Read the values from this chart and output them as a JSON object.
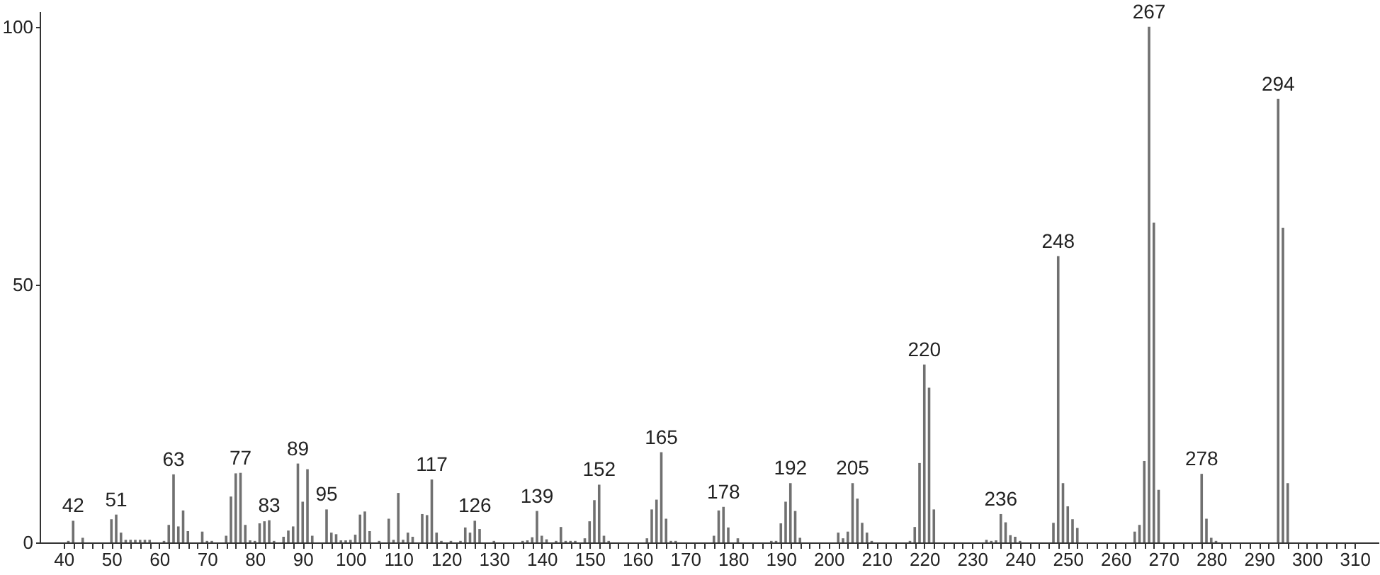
{
  "chart_data": {
    "type": "bar",
    "x": [
      41,
      42,
      44,
      50,
      51,
      52,
      53,
      54,
      55,
      56,
      57,
      58,
      61,
      62,
      63,
      64,
      65,
      66,
      69,
      70,
      71,
      74,
      75,
      76,
      77,
      78,
      79,
      80,
      81,
      82,
      83,
      84,
      86,
      87,
      88,
      89,
      90,
      91,
      92,
      95,
      96,
      97,
      98,
      99,
      100,
      101,
      102,
      103,
      104,
      106,
      108,
      109,
      110,
      111,
      112,
      113,
      115,
      116,
      117,
      118,
      119,
      121,
      123,
      124,
      125,
      126,
      127,
      130,
      136,
      137,
      138,
      139,
      140,
      141,
      143,
      144,
      145,
      146,
      147,
      149,
      150,
      151,
      152,
      153,
      154,
      162,
      163,
      164,
      165,
      166,
      167,
      168,
      176,
      177,
      178,
      179,
      181,
      188,
      189,
      190,
      191,
      192,
      193,
      194,
      202,
      203,
      204,
      205,
      206,
      207,
      208,
      209,
      217,
      218,
      219,
      220,
      221,
      222,
      233,
      234,
      235,
      236,
      237,
      238,
      239,
      240,
      247,
      248,
      249,
      250,
      251,
      252,
      264,
      265,
      266,
      267,
      268,
      269,
      278,
      279,
      280,
      281,
      294,
      295,
      296
    ],
    "values": [
      0.3,
      4.2,
      0.9,
      4.5,
      5.4,
      1.9,
      0.5,
      0.5,
      0.5,
      0.5,
      0.5,
      0.5,
      0.3,
      3.4,
      13.2,
      3.1,
      6.2,
      2.2,
      2.1,
      0.3,
      0.3,
      1.3,
      8.9,
      13.4,
      13.5,
      3.4,
      0.4,
      0.3,
      3.7,
      4.1,
      4.3,
      0.3,
      1.1,
      2.3,
      3.1,
      15.3,
      7.9,
      14.2,
      1.3,
      6.4,
      1.9,
      1.6,
      0.4,
      0.4,
      0.5,
      1.5,
      5.4,
      6.0,
      2.2,
      0.3,
      4.6,
      0.5,
      9.6,
      0.5,
      1.9,
      1.1,
      5.5,
      5.3,
      12.2,
      1.9,
      0.3,
      0.3,
      0.3,
      2.9,
      1.9,
      4.2,
      2.6,
      0.3,
      0.3,
      0.4,
      1.0,
      6.1,
      1.3,
      0.6,
      0.3,
      3.0,
      0.3,
      0.3,
      0.3,
      0.8,
      4.1,
      8.2,
      11.2,
      1.3,
      0.3,
      0.8,
      6.4,
      8.3,
      17.5,
      4.6,
      0.3,
      0.3,
      1.3,
      6.2,
      6.9,
      2.9,
      0.8,
      0.3,
      0.3,
      3.7,
      7.9,
      11.5,
      6.1,
      0.9,
      1.9,
      0.8,
      2.1,
      11.5,
      8.5,
      3.8,
      1.9,
      0.3,
      0.3,
      3.0,
      15.4,
      34.5,
      30.0,
      6.4,
      0.5,
      0.3,
      0.4,
      5.5,
      3.9,
      1.4,
      1.1,
      0.3,
      3.8,
      55.5,
      11.5,
      7.0,
      4.5,
      2.8,
      2.1,
      3.4,
      15.8,
      100,
      62,
      10.2,
      13.3,
      4.6,
      0.9,
      0.3,
      86,
      61,
      11.5
    ],
    "color": "#707070",
    "xlim": [
      35,
      315
    ],
    "xticks": [
      40,
      {
        "value": 42,
        "label": null
      },
      {
        "value": 44,
        "label": null
      },
      {
        "value": 46,
        "label": null
      },
      {
        "value": 48,
        "label": null
      },
      50,
      {
        "value": 52,
        "label": null
      },
      {
        "value": 54,
        "label": null
      },
      {
        "value": 56,
        "label": null
      },
      {
        "value": 58,
        "label": null
      },
      60,
      {
        "value": 62,
        "label": null
      },
      {
        "value": 64,
        "label": null
      },
      {
        "value": 66,
        "label": null
      },
      {
        "value": 68,
        "label": null
      },
      70,
      {
        "value": 72,
        "label": null
      },
      {
        "value": 74,
        "label": null
      },
      {
        "value": 76,
        "label": null
      },
      {
        "value": 78,
        "label": null
      },
      80,
      {
        "value": 82,
        "label": null
      },
      {
        "value": 84,
        "label": null
      },
      {
        "value": 86,
        "label": null
      },
      {
        "value": 88,
        "label": null
      },
      90,
      {
        "value": 92,
        "label": null
      },
      {
        "value": 94,
        "label": null
      },
      {
        "value": 96,
        "label": null
      },
      {
        "value": 98,
        "label": null
      },
      100,
      {
        "value": 102,
        "label": null
      },
      {
        "value": 104,
        "label": null
      },
      {
        "value": 106,
        "label": null
      },
      {
        "value": 108,
        "label": null
      },
      110,
      {
        "value": 112,
        "label": null
      },
      {
        "value": 114,
        "label": null
      },
      {
        "value": 116,
        "label": null
      },
      {
        "value": 118,
        "label": null
      },
      120,
      {
        "value": 122,
        "label": null
      },
      {
        "value": 124,
        "label": null
      },
      {
        "value": 126,
        "label": null
      },
      {
        "value": 128,
        "label": null
      },
      130,
      {
        "value": 132,
        "label": null
      },
      {
        "value": 134,
        "label": null
      },
      {
        "value": 136,
        "label": null
      },
      {
        "value": 138,
        "label": null
      },
      140,
      {
        "value": 142,
        "label": null
      },
      {
        "value": 144,
        "label": null
      },
      {
        "value": 146,
        "label": null
      },
      {
        "value": 148,
        "label": null
      },
      150,
      {
        "value": 152,
        "label": null
      },
      {
        "value": 154,
        "label": null
      },
      {
        "value": 156,
        "label": null
      },
      {
        "value": 158,
        "label": null
      },
      160,
      {
        "value": 162,
        "label": null
      },
      {
        "value": 164,
        "label": null
      },
      {
        "value": 166,
        "label": null
      },
      {
        "value": 168,
        "label": null
      },
      170,
      {
        "value": 172,
        "label": null
      },
      {
        "value": 174,
        "label": null
      },
      {
        "value": 176,
        "label": null
      },
      {
        "value": 178,
        "label": null
      },
      180,
      {
        "value": 182,
        "label": null
      },
      {
        "value": 184,
        "label": null
      },
      {
        "value": 186,
        "label": null
      },
      {
        "value": 188,
        "label": null
      },
      190,
      {
        "value": 192,
        "label": null
      },
      {
        "value": 194,
        "label": null
      },
      {
        "value": 196,
        "label": null
      },
      {
        "value": 198,
        "label": null
      },
      200,
      {
        "value": 202,
        "label": null
      },
      {
        "value": 204,
        "label": null
      },
      {
        "value": 206,
        "label": null
      },
      {
        "value": 208,
        "label": null
      },
      210,
      {
        "value": 212,
        "label": null
      },
      {
        "value": 214,
        "label": null
      },
      {
        "value": 216,
        "label": null
      },
      {
        "value": 218,
        "label": null
      },
      220,
      {
        "value": 222,
        "label": null
      },
      {
        "value": 224,
        "label": null
      },
      {
        "value": 226,
        "label": null
      },
      {
        "value": 228,
        "label": null
      },
      230,
      {
        "value": 232,
        "label": null
      },
      {
        "value": 234,
        "label": null
      },
      {
        "value": 236,
        "label": null
      },
      {
        "value": 238,
        "label": null
      },
      240,
      {
        "value": 242,
        "label": null
      },
      {
        "value": 244,
        "label": null
      },
      {
        "value": 246,
        "label": null
      },
      {
        "value": 248,
        "label": null
      },
      250,
      {
        "value": 252,
        "label": null
      },
      {
        "value": 254,
        "label": null
      },
      {
        "value": 256,
        "label": null
      },
      {
        "value": 258,
        "label": null
      },
      260,
      {
        "value": 262,
        "label": null
      },
      {
        "value": 264,
        "label": null
      },
      {
        "value": 266,
        "label": null
      },
      {
        "value": 268,
        "label": null
      },
      270,
      {
        "value": 272,
        "label": null
      },
      {
        "value": 274,
        "label": null
      },
      {
        "value": 276,
        "label": null
      },
      {
        "value": 278,
        "label": null
      },
      280,
      {
        "value": 282,
        "label": null
      },
      {
        "value": 284,
        "label": null
      },
      {
        "value": 286,
        "label": null
      },
      {
        "value": 288,
        "label": null
      },
      290,
      {
        "value": 292,
        "label": null
      },
      {
        "value": 294,
        "label": null
      },
      {
        "value": 296,
        "label": null
      },
      {
        "value": 298,
        "label": null
      },
      300,
      {
        "value": 302,
        "label": null
      },
      {
        "value": 304,
        "label": null
      },
      {
        "value": 306,
        "label": null
      },
      {
        "value": 308,
        "label": null
      },
      310
    ],
    "ylim": [
      0,
      103
    ],
    "yticks": [
      0,
      50,
      100
    ],
    "grid": false,
    "annotations": [
      {
        "text": "42",
        "x": 42,
        "y": 4.2
      },
      {
        "text": "51",
        "x": 51,
        "y": 5.4
      },
      {
        "text": "63",
        "x": 63,
        "y": 13.2
      },
      {
        "text": "77",
        "x": 77,
        "y": 13.5
      },
      {
        "text": "83",
        "x": 83,
        "y": 4.3
      },
      {
        "text": "89",
        "x": 89,
        "y": 15.3
      },
      {
        "text": "95",
        "x": 95,
        "y": 6.4
      },
      {
        "text": "117",
        "x": 117,
        "y": 12.2
      },
      {
        "text": "126",
        "x": 126,
        "y": 4.2
      },
      {
        "text": "139",
        "x": 139,
        "y": 6.1
      },
      {
        "text": "152",
        "x": 152,
        "y": 11.2
      },
      {
        "text": "165",
        "x": 165,
        "y": 17.5
      },
      {
        "text": "178",
        "x": 178,
        "y": 6.9
      },
      {
        "text": "192",
        "x": 192,
        "y": 11.5
      },
      {
        "text": "205",
        "x": 205,
        "y": 11.5
      },
      {
        "text": "220",
        "x": 220,
        "y": 34.5
      },
      {
        "text": "236",
        "x": 236,
        "y": 5.5
      },
      {
        "text": "248",
        "x": 248,
        "y": 55.5
      },
      {
        "text": "267",
        "x": 267,
        "y": 100
      },
      {
        "text": "278",
        "x": 278,
        "y": 13.3
      },
      {
        "text": "294",
        "x": 294,
        "y": 86
      }
    ]
  }
}
